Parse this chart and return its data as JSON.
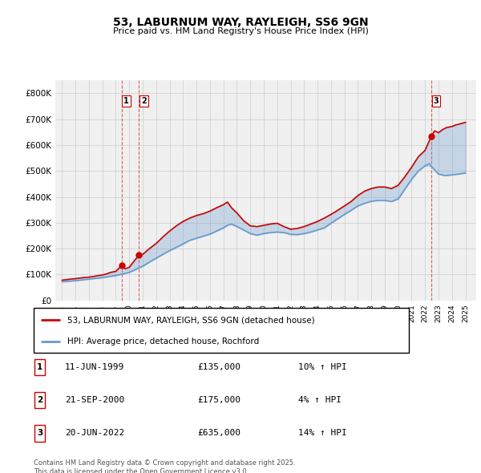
{
  "title": "53, LABURNUM WAY, RAYLEIGH, SS6 9GN",
  "subtitle": "Price paid vs. HM Land Registry's House Price Index (HPI)",
  "legend_line1": "53, LABURNUM WAY, RAYLEIGH, SS6 9GN (detached house)",
  "legend_line2": "HPI: Average price, detached house, Rochford",
  "footnote": "Contains HM Land Registry data © Crown copyright and database right 2025.\nThis data is licensed under the Open Government Licence v3.0.",
  "transactions": [
    {
      "num": 1,
      "date": "11-JUN-1999",
      "price": 135000,
      "hpi_change": "10% ↑ HPI",
      "year": 1999.44
    },
    {
      "num": 2,
      "date": "21-SEP-2000",
      "price": 175000,
      "hpi_change": "4% ↑ HPI",
      "year": 2000.72
    },
    {
      "num": 3,
      "date": "20-JUN-2022",
      "price": 635000,
      "hpi_change": "14% ↑ HPI",
      "year": 2022.47
    }
  ],
  "hpi_color": "#6699cc",
  "price_color": "#cc0000",
  "vline_color": "#cc0000",
  "grid_color": "#cccccc",
  "bg_color": "#ffffff",
  "plot_bg_color": "#f0f0f0",
  "ylim": [
    0,
    850000
  ],
  "yticks": [
    0,
    100000,
    200000,
    300000,
    400000,
    500000,
    600000,
    700000,
    800000
  ],
  "xlim_start": 1994.5,
  "xlim_end": 2025.8,
  "years_hpi": [
    1995.0,
    1995.5,
    1996.0,
    1996.5,
    1997.0,
    1997.5,
    1998.0,
    1998.5,
    1999.0,
    1999.5,
    2000.0,
    2000.5,
    2001.0,
    2001.5,
    2002.0,
    2002.5,
    2003.0,
    2003.5,
    2004.0,
    2004.5,
    2005.0,
    2005.5,
    2006.0,
    2006.5,
    2007.0,
    2007.3,
    2007.6,
    2008.0,
    2008.5,
    2009.0,
    2009.5,
    2010.0,
    2010.5,
    2011.0,
    2011.5,
    2012.0,
    2012.5,
    2013.0,
    2013.5,
    2014.0,
    2014.5,
    2015.0,
    2015.5,
    2016.0,
    2016.5,
    2017.0,
    2017.5,
    2018.0,
    2018.5,
    2019.0,
    2019.5,
    2020.0,
    2020.5,
    2021.0,
    2021.5,
    2022.0,
    2022.3,
    2022.6,
    2023.0,
    2023.5,
    2024.0,
    2024.5,
    2025.0
  ],
  "hpi_values": [
    72000,
    74000,
    76000,
    79000,
    82000,
    85000,
    88000,
    92000,
    96000,
    102000,
    108000,
    120000,
    132000,
    148000,
    163000,
    178000,
    192000,
    205000,
    218000,
    232000,
    240000,
    248000,
    256000,
    268000,
    280000,
    290000,
    295000,
    285000,
    272000,
    258000,
    252000,
    258000,
    262000,
    264000,
    262000,
    255000,
    254000,
    258000,
    264000,
    272000,
    280000,
    298000,
    315000,
    332000,
    348000,
    365000,
    375000,
    383000,
    386000,
    386000,
    382000,
    392000,
    430000,
    468000,
    500000,
    520000,
    528000,
    510000,
    488000,
    482000,
    485000,
    488000,
    492000
  ],
  "price_values_x": [
    1995.0,
    1995.3,
    1995.6,
    1996.0,
    1996.3,
    1996.6,
    1997.0,
    1997.3,
    1997.6,
    1998.0,
    1998.3,
    1998.6,
    1999.0,
    1999.44,
    1999.7,
    2000.0,
    2000.3,
    2000.72,
    2001.0,
    2001.5,
    2002.0,
    2002.5,
    2003.0,
    2003.5,
    2004.0,
    2004.5,
    2005.0,
    2005.5,
    2006.0,
    2006.5,
    2007.0,
    2007.3,
    2007.6,
    2008.0,
    2008.5,
    2009.0,
    2009.5,
    2010.0,
    2010.5,
    2011.0,
    2011.5,
    2012.0,
    2012.5,
    2013.0,
    2013.5,
    2014.0,
    2014.5,
    2015.0,
    2015.5,
    2016.0,
    2016.5,
    2017.0,
    2017.5,
    2018.0,
    2018.5,
    2019.0,
    2019.5,
    2020.0,
    2020.5,
    2021.0,
    2021.5,
    2022.0,
    2022.47,
    2022.7,
    2023.0,
    2023.3,
    2023.6,
    2024.0,
    2024.3,
    2024.6,
    2025.0
  ],
  "price_values_y": [
    78000,
    80000,
    82000,
    84000,
    86000,
    88000,
    90000,
    92000,
    95000,
    98000,
    102000,
    108000,
    112000,
    135000,
    122000,
    128000,
    148000,
    175000,
    178000,
    200000,
    220000,
    245000,
    268000,
    288000,
    305000,
    318000,
    328000,
    335000,
    345000,
    358000,
    370000,
    380000,
    358000,
    338000,
    308000,
    288000,
    285000,
    290000,
    295000,
    298000,
    285000,
    275000,
    278000,
    285000,
    295000,
    305000,
    318000,
    332000,
    348000,
    365000,
    382000,
    405000,
    422000,
    432000,
    438000,
    438000,
    432000,
    445000,
    478000,
    515000,
    555000,
    580000,
    635000,
    655000,
    648000,
    660000,
    668000,
    672000,
    678000,
    682000,
    688000
  ]
}
